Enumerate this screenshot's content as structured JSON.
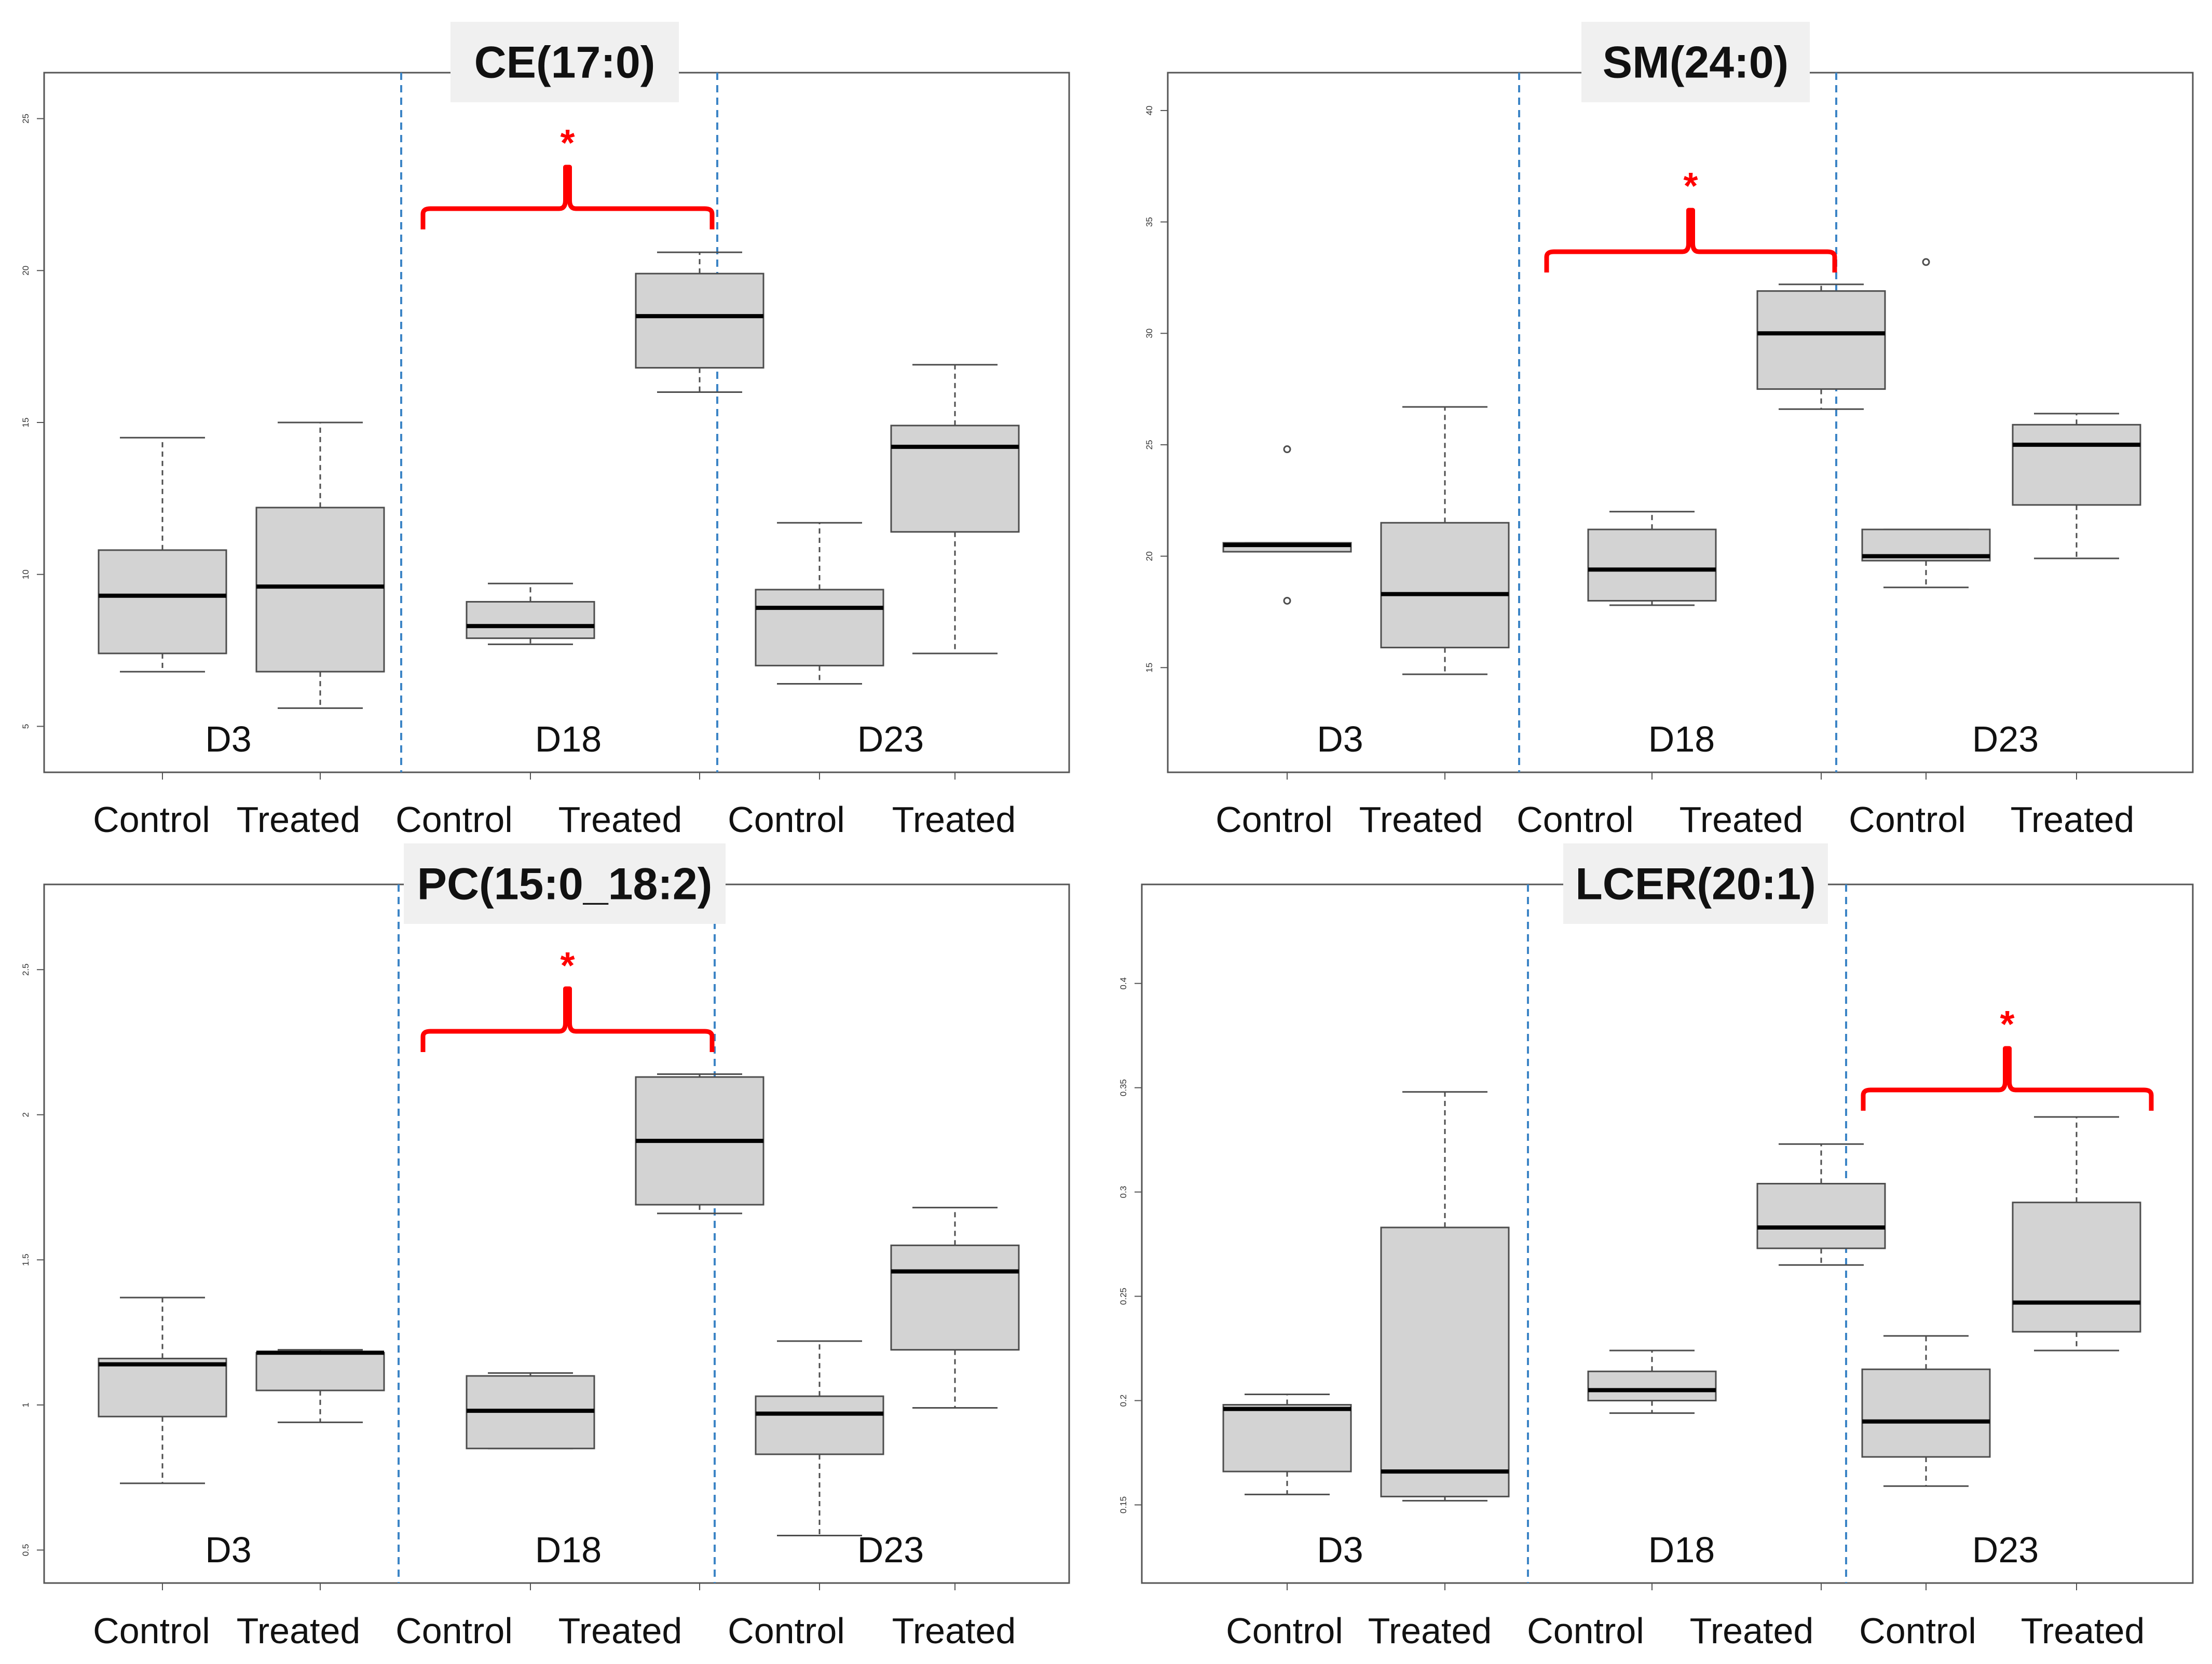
{
  "colors": {
    "box_fill": "#d3d3d3",
    "box_stroke": "#4d4d4d",
    "median": "#000000",
    "divider": "#3d85c6",
    "significance": "#ff0000",
    "frame": "#555555",
    "title_bg": "#f0f0f0"
  },
  "chart_data": [
    {
      "type": "box",
      "title": "CE(17:0)",
      "ylim": [
        4,
        26
      ],
      "yticks": [
        5,
        10,
        15,
        20,
        25
      ],
      "days": [
        "D3",
        "D18",
        "D23"
      ],
      "categories": [
        "Control",
        "Treated",
        "Control",
        "Treated",
        "Control",
        "Treated"
      ],
      "boxes": [
        {
          "day": "D3",
          "group": "Control",
          "min": 6.8,
          "q1": 7.4,
          "median": 9.3,
          "q3": 10.8,
          "max": 14.5,
          "outliers": []
        },
        {
          "day": "D3",
          "group": "Treated",
          "min": 5.6,
          "q1": 6.8,
          "median": 9.6,
          "q3": 12.2,
          "max": 15.0,
          "outliers": []
        },
        {
          "day": "D18",
          "group": "Control",
          "min": 7.7,
          "q1": 7.9,
          "median": 8.3,
          "q3": 9.1,
          "max": 9.7,
          "outliers": []
        },
        {
          "day": "D18",
          "group": "Treated",
          "min": 16.0,
          "q1": 16.8,
          "median": 18.5,
          "q3": 19.9,
          "max": 20.6,
          "outliers": []
        },
        {
          "day": "D23",
          "group": "Control",
          "min": 6.4,
          "q1": 7.0,
          "median": 8.9,
          "q3": 9.5,
          "max": 11.7,
          "outliers": []
        },
        {
          "day": "D23",
          "group": "Treated",
          "min": 7.4,
          "q1": 11.4,
          "median": 14.2,
          "q3": 14.9,
          "max": 16.9,
          "outliers": []
        }
      ],
      "significance": {
        "day": "D18",
        "label": "*"
      }
    },
    {
      "type": "box",
      "title": "SM(24:0)",
      "ylim": [
        11,
        41
      ],
      "yticks": [
        15,
        20,
        25,
        30,
        35,
        40
      ],
      "days": [
        "D3",
        "D18",
        "D23"
      ],
      "categories": [
        "Control",
        "Treated",
        "Control",
        "Treated",
        "Control",
        "Treated"
      ],
      "boxes": [
        {
          "day": "D3",
          "group": "Control",
          "min": 20.2,
          "q1": 20.2,
          "median": 20.5,
          "q3": 20.6,
          "max": 20.6,
          "outliers": [
            24.8,
            18.0
          ]
        },
        {
          "day": "D3",
          "group": "Treated",
          "min": 14.7,
          "q1": 15.9,
          "median": 18.3,
          "q3": 21.5,
          "max": 26.7,
          "outliers": []
        },
        {
          "day": "D18",
          "group": "Control",
          "min": 17.8,
          "q1": 18.0,
          "median": 19.4,
          "q3": 21.2,
          "max": 22.0,
          "outliers": []
        },
        {
          "day": "D18",
          "group": "Treated",
          "min": 26.6,
          "q1": 27.5,
          "median": 30.0,
          "q3": 31.9,
          "max": 32.2,
          "outliers": []
        },
        {
          "day": "D23",
          "group": "Control",
          "min": 18.6,
          "q1": 19.8,
          "median": 20.0,
          "q3": 21.2,
          "max": 21.2,
          "outliers": [
            33.2
          ]
        },
        {
          "day": "D23",
          "group": "Treated",
          "min": 19.9,
          "q1": 22.3,
          "median": 25.0,
          "q3": 25.9,
          "max": 26.4,
          "outliers": []
        }
      ],
      "significance": {
        "day": "D18",
        "label": "*"
      }
    },
    {
      "type": "box",
      "title": "PC(15:0_18:2)",
      "ylim": [
        0.44,
        2.74
      ],
      "yticks": [
        0.5,
        1.0,
        1.5,
        2.0,
        2.5
      ],
      "days": [
        "D3",
        "D18",
        "D23"
      ],
      "categories": [
        "Control",
        "Treated",
        "Control",
        "Treated",
        "Control",
        "Treated"
      ],
      "boxes": [
        {
          "day": "D3",
          "group": "Control",
          "min": 0.73,
          "q1": 0.96,
          "median": 1.14,
          "q3": 1.16,
          "max": 1.37,
          "outliers": []
        },
        {
          "day": "D3",
          "group": "Treated",
          "min": 0.94,
          "q1": 1.05,
          "median": 1.18,
          "q3": 1.18,
          "max": 1.19,
          "outliers": []
        },
        {
          "day": "D18",
          "group": "Control",
          "min": 0.85,
          "q1": 0.85,
          "median": 0.98,
          "q3": 1.1,
          "max": 1.11,
          "outliers": []
        },
        {
          "day": "D18",
          "group": "Treated",
          "min": 1.66,
          "q1": 1.69,
          "median": 1.91,
          "q3": 2.13,
          "max": 2.14,
          "outliers": []
        },
        {
          "day": "D23",
          "group": "Control",
          "min": 0.55,
          "q1": 0.83,
          "median": 0.97,
          "q3": 1.03,
          "max": 1.22,
          "outliers": []
        },
        {
          "day": "D23",
          "group": "Treated",
          "min": 0.99,
          "q1": 1.19,
          "median": 1.46,
          "q3": 1.55,
          "max": 1.68,
          "outliers": []
        }
      ],
      "significance": {
        "day": "D18",
        "label": "*"
      }
    },
    {
      "type": "box",
      "title": "LCER(20:1)",
      "ylim": [
        0.12,
        0.44
      ],
      "yticks": [
        0.15,
        0.2,
        0.25,
        0.3,
        0.35,
        0.4
      ],
      "days": [
        "D3",
        "D18",
        "D23"
      ],
      "categories": [
        "Control",
        "Treated",
        "Control",
        "Treated",
        "Control",
        "Treated"
      ],
      "boxes": [
        {
          "day": "D3",
          "group": "Control",
          "min": 0.155,
          "q1": 0.166,
          "median": 0.196,
          "q3": 0.198,
          "max": 0.203,
          "outliers": []
        },
        {
          "day": "D3",
          "group": "Treated",
          "min": 0.152,
          "q1": 0.154,
          "median": 0.166,
          "q3": 0.283,
          "max": 0.348,
          "outliers": []
        },
        {
          "day": "D18",
          "group": "Control",
          "min": 0.194,
          "q1": 0.2,
          "median": 0.205,
          "q3": 0.214,
          "max": 0.224,
          "outliers": []
        },
        {
          "day": "D18",
          "group": "Treated",
          "min": 0.265,
          "q1": 0.273,
          "median": 0.283,
          "q3": 0.304,
          "max": 0.323,
          "outliers": []
        },
        {
          "day": "D23",
          "group": "Control",
          "min": 0.159,
          "q1": 0.173,
          "median": 0.19,
          "q3": 0.215,
          "max": 0.231,
          "outliers": []
        },
        {
          "day": "D23",
          "group": "Treated",
          "min": 0.224,
          "q1": 0.233,
          "median": 0.247,
          "q3": 0.295,
          "max": 0.336,
          "outliers": []
        }
      ],
      "significance": {
        "day": "D23",
        "label": "*"
      }
    }
  ]
}
